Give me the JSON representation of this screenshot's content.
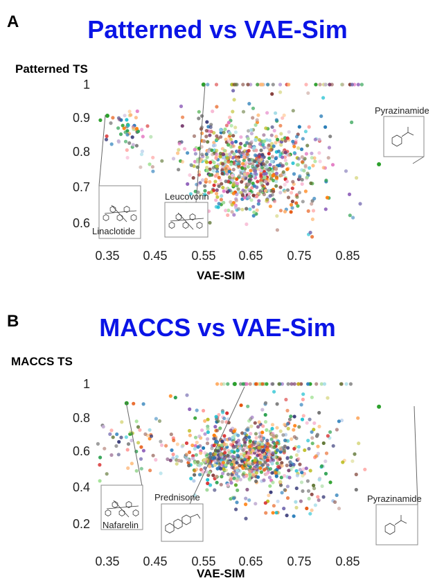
{
  "panels": [
    {
      "label": "A",
      "title": "Patterned vs VAE-Sim",
      "ylabel": "Patterned TS",
      "xlabel": "VAE-SIM",
      "annotations": [
        "Linaclotide",
        "Leucovorin",
        "Pyrazinamide"
      ]
    },
    {
      "label": "B",
      "title": "MACCS vs VAE-Sim",
      "ylabel": "MACCS TS",
      "xlabel": "VAE-SIM",
      "annotations": [
        "Nafarelin",
        "Prednisone",
        "Pyrazinamide"
      ]
    }
  ],
  "palette": [
    "#1f77b4",
    "#ff7f0e",
    "#2ca02c",
    "#d62728",
    "#9467bd",
    "#8c564b",
    "#e377c2",
    "#17becf",
    "#bcbd22",
    "#7f7f7f",
    "#aec7e8",
    "#ffbb78",
    "#98df8a",
    "#ff9896",
    "#c5b0d5",
    "#c49c94",
    "#f7b6d2",
    "#9edae5",
    "#dbdb8d",
    "#393b79",
    "#637939",
    "#843c39",
    "#7b4173",
    "#3182bd",
    "#e6550d",
    "#31a354",
    "#756bb1",
    "#636363",
    "#fdae6b",
    "#a1d99b"
  ],
  "chart_data": [
    {
      "type": "scatter",
      "title": "Patterned vs VAE-Sim",
      "xlabel": "VAE-SIM",
      "ylabel": "Patterned TS",
      "x_ticks": [
        0.35,
        0.45,
        0.55,
        0.65,
        0.75,
        0.85
      ],
      "y_ticks": [
        0.6,
        0.7,
        0.8,
        0.9,
        1
      ],
      "xlim": [
        0.33,
        0.93
      ],
      "ylim": [
        0.555,
        1.02
      ],
      "grid": false,
      "highlighted_points": [
        {
          "name": "Linaclotide",
          "x": 0.35,
          "y": 0.91
        },
        {
          "name": "Leucovorin",
          "x": 0.55,
          "y": 1.0
        },
        {
          "name": "Pyrazinamide",
          "x": 0.915,
          "y": 0.77
        }
      ],
      "clusters": [
        {
          "cx": 0.63,
          "cy": 0.76,
          "sx": 0.06,
          "sy": 0.055,
          "n": 520
        },
        {
          "cx": 0.66,
          "cy": 0.84,
          "sx": 0.09,
          "sy": 0.07,
          "n": 160
        },
        {
          "cx": 0.39,
          "cy": 0.87,
          "sx": 0.025,
          "sy": 0.03,
          "n": 50
        },
        {
          "cx": 0.71,
          "cy": 0.7,
          "sx": 0.07,
          "sy": 0.06,
          "n": 120
        }
      ],
      "top_row": {
        "y": 1.0,
        "x_min": 0.55,
        "x_max": 0.88,
        "n": 38
      }
    },
    {
      "type": "scatter",
      "title": "MACCS vs VAE-Sim",
      "xlabel": "VAE-SIM",
      "ylabel": "MACCS TS",
      "x_ticks": [
        0.35,
        0.45,
        0.55,
        0.65,
        0.75,
        0.85
      ],
      "y_ticks": [
        0.2,
        0.4,
        0.6,
        0.8,
        1
      ],
      "xlim": [
        0.33,
        0.93
      ],
      "ylim": [
        0.1,
        1.04
      ],
      "grid": false,
      "highlighted_points": [
        {
          "name": "Nafarelin",
          "x": 0.39,
          "y": 0.89
        },
        {
          "name": "Prednisone",
          "x": 0.615,
          "y": 1.0
        },
        {
          "name": "Pyrazinamide",
          "x": 0.915,
          "y": 0.87
        }
      ],
      "clusters": [
        {
          "cx": 0.63,
          "cy": 0.58,
          "sx": 0.06,
          "sy": 0.07,
          "n": 560
        },
        {
          "cx": 0.66,
          "cy": 0.7,
          "sx": 0.1,
          "sy": 0.12,
          "n": 200
        },
        {
          "cx": 0.39,
          "cy": 0.7,
          "sx": 0.03,
          "sy": 0.09,
          "n": 45
        },
        {
          "cx": 0.7,
          "cy": 0.4,
          "sx": 0.08,
          "sy": 0.1,
          "n": 90
        }
      ],
      "top_row": {
        "y": 1.0,
        "x_min": 0.57,
        "x_max": 0.88,
        "n": 40
      }
    }
  ]
}
